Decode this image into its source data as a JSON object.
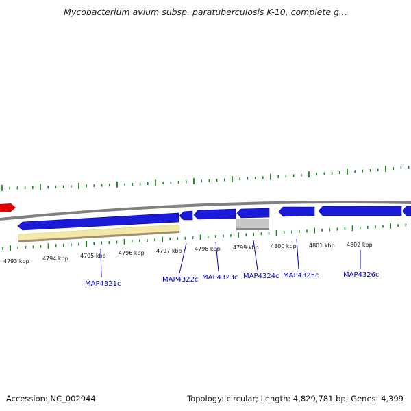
{
  "title": "Mycobacterium avium subsp. paratuberculosis K-10, complete g...",
  "accession": "Accession: NC_002944",
  "summary": "Topology: circular; Length: 4,829,781 bp; Genes: 4,399",
  "colors": {
    "backbone": "#808080",
    "gene_forward": "#1010e0",
    "gene_reverse": "#1010e0",
    "highlight": "#f0e6a0",
    "pseudo": "#c0c0c0",
    "marker": "#e00000",
    "ticks": "#1a8a1a",
    "label": "#0000cc"
  },
  "ruler": {
    "unit": "kbp",
    "labels": [
      "4793 kbp",
      "4794 kbp",
      "4795 kbp",
      "4796 kbp",
      "4797 kbp",
      "4798 kbp",
      "4799 kbp",
      "4800 kbp",
      "4801 kbp",
      "4802 kbp"
    ]
  },
  "genes": [
    {
      "label": "MAP4321c"
    },
    {
      "label": "MAP4322c"
    },
    {
      "label": "MAP4323c"
    },
    {
      "label": "MAP4324c"
    },
    {
      "label": "MAP4325c"
    },
    {
      "label": "MAP4326c"
    }
  ]
}
